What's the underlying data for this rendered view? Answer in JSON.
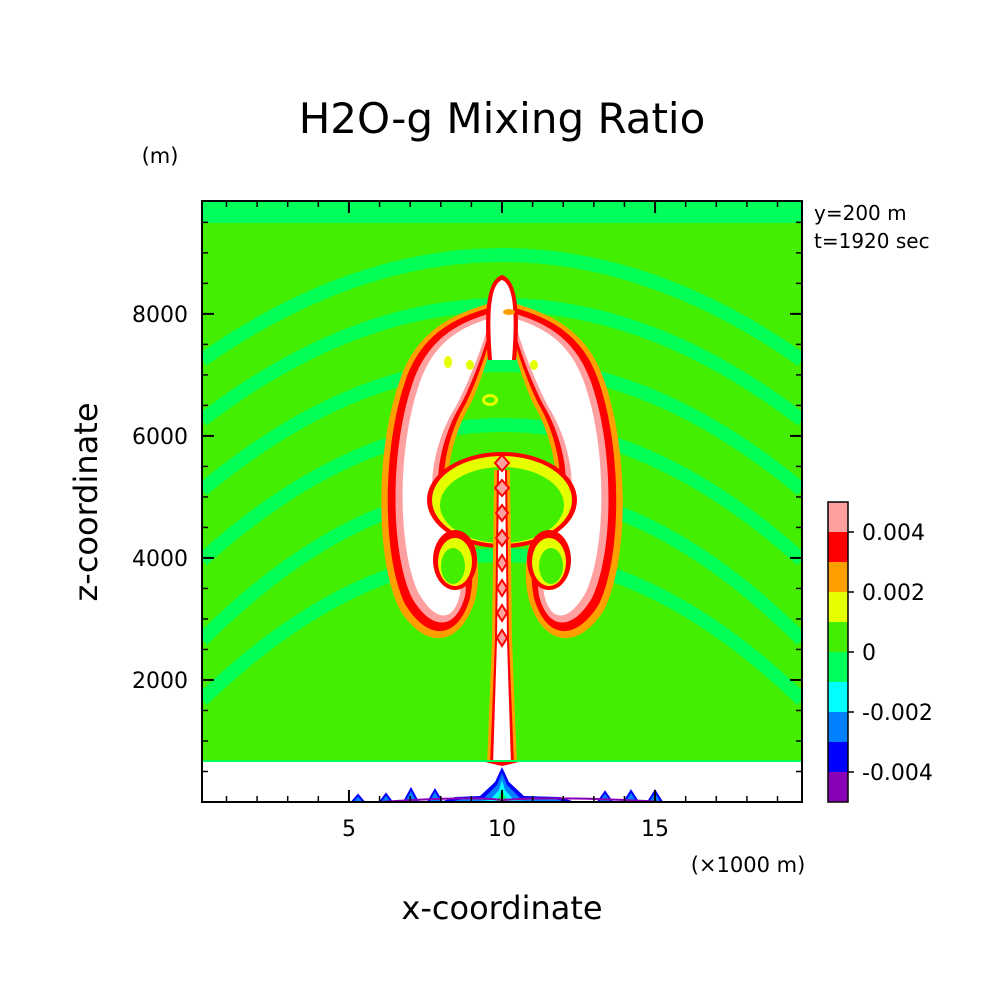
{
  "chart_data": {
    "type": "heatmap",
    "title": "H2O-g Mixing Ratio",
    "xlabel": "x-coordinate",
    "ylabel": "z-coordinate",
    "x_unit": "(×1000 m)",
    "y_unit": "(m)",
    "annotations": [
      "y=200 m",
      "t=1920 sec"
    ],
    "xlim": [
      0.2,
      19.8
    ],
    "ylim": [
      0,
      9850
    ],
    "x_ticks": [
      5,
      10,
      15
    ],
    "y_ticks": [
      2000,
      4000,
      6000,
      8000
    ],
    "colorbar": {
      "levels": [
        -0.005,
        -0.004,
        -0.003,
        -0.002,
        -0.001,
        0,
        0.001,
        0.002,
        0.003,
        0.004,
        0.005
      ],
      "colors": [
        "#8a00b4",
        "#0000ff",
        "#0080ff",
        "#00ffff",
        "#00ff5a",
        "#44ee00",
        "#e6ff00",
        "#ffa000",
        "#ff0000",
        "#ffa0a0"
      ],
      "tick_values": [
        "-0.004",
        "-0.002",
        "0",
        "0.002",
        "0.004"
      ]
    },
    "background_values": {
      "domain_fill": 0,
      "outer_bands": -0.0005,
      "plume_core": 0.006,
      "surface_layer_top_z": 700
    }
  }
}
